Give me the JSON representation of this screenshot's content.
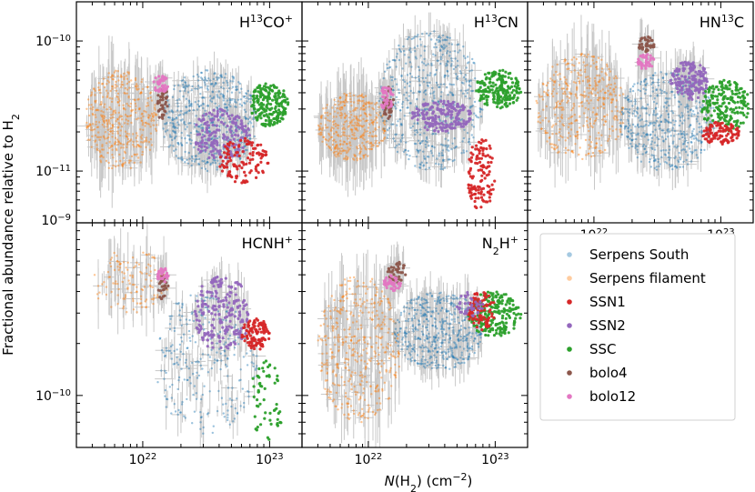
{
  "chart_data": {
    "type": "scatter",
    "xlabel": "N(H2) (cm−2)",
    "xlabel_parts": {
      "italic": "N",
      "rest": "(H",
      "sub": "2",
      "rest2": ") (cm",
      "sup": "−2",
      "close": ")"
    },
    "ylabel": "Fractional abundance relative to H2",
    "ylabel_parts": {
      "main": "Fractional abundance relative to H",
      "sub": "2"
    },
    "x_scale": "log",
    "y_scale": "log",
    "xlim": [
      3e+21,
      1.8e+23
    ],
    "x_ticks": [
      {
        "value": 1e+22,
        "base": "10",
        "exp": "22"
      },
      {
        "value": 1e+23,
        "base": "10",
        "exp": "23"
      }
    ],
    "y_ticks_top": [
      {
        "value": 1e-10,
        "base": "10",
        "exp": "−10"
      },
      {
        "value": 1e-11,
        "base": "10",
        "exp": "−11"
      }
    ],
    "y_ticks_bottom": [
      {
        "value": 1e-09,
        "base": "10",
        "exp": "−9"
      },
      {
        "value": 1e-10,
        "base": "10",
        "exp": "−10"
      }
    ],
    "ylim_top": [
      4e-12,
      2e-10
    ],
    "ylim_bottom": [
      5e-11,
      1e-09
    ],
    "series": [
      {
        "name": "Serpens South",
        "color": "#1f77b4"
      },
      {
        "name": "Serpens filament",
        "color": "#ff7f0e"
      },
      {
        "name": "SSN1",
        "color": "#d62728"
      },
      {
        "name": "SSN2",
        "color": "#9467bd"
      },
      {
        "name": "SSC",
        "color": "#2ca02c"
      },
      {
        "name": "bolo4",
        "color": "#8c564b"
      },
      {
        "name": "bolo12",
        "color": "#e377c2"
      }
    ],
    "panels": [
      {
        "id": "h13cop",
        "title_base": "H",
        "title_sup": "13",
        "title_rest": "CO",
        "title_sup2": "+",
        "title_sub": "",
        "clusters": [
          {
            "s": 1,
            "n": 420,
            "xr": [
              3.5e+21,
              1.3e+22
            ],
            "yr": [
              1e-11,
              6e-11
            ]
          },
          {
            "s": 0,
            "n": 520,
            "xr": [
              1.4e+22,
              8e+22
            ],
            "yr": [
              1e-11,
              6e-11
            ]
          },
          {
            "s": 4,
            "n": 200,
            "xr": [
              7e+22,
              1.4e+23
            ],
            "yr": [
              2.2e-11,
              4.8e-11
            ]
          },
          {
            "s": 3,
            "n": 180,
            "xr": [
              2.5e+22,
              7e+22
            ],
            "yr": [
              1.2e-11,
              3e-11
            ]
          },
          {
            "s": 2,
            "n": 120,
            "xr": [
              4e+22,
              1e+23
            ],
            "yr": [
              8e-12,
              1.8e-11
            ]
          },
          {
            "s": 5,
            "n": 40,
            "xr": [
              1.3e+22,
              1.6e+22
            ],
            "yr": [
              2.4e-11,
              4.5e-11
            ]
          },
          {
            "s": 6,
            "n": 40,
            "xr": [
              1.2e+22,
              1.6e+22
            ],
            "yr": [
              4e-11,
              5.5e-11
            ]
          }
        ]
      },
      {
        "id": "h13cn",
        "title_base": "H",
        "title_sup": "13",
        "title_rest": "CN",
        "title_sup2": "",
        "title_sub": "",
        "clusters": [
          {
            "s": 1,
            "n": 380,
            "xr": [
              4e+21,
              1.4e+22
            ],
            "yr": [
              1.2e-11,
              4e-11
            ]
          },
          {
            "s": 0,
            "n": 520,
            "xr": [
              1.2e+22,
              8e+22
            ],
            "yr": [
              1e-11,
              1.2e-10
            ]
          },
          {
            "s": 4,
            "n": 200,
            "xr": [
              7e+22,
              1.6e+23
            ],
            "yr": [
              3e-11,
              6e-11
            ]
          },
          {
            "s": 3,
            "n": 180,
            "xr": [
              2.2e+22,
              6.5e+22
            ],
            "yr": [
              2e-11,
              3.5e-11
            ]
          },
          {
            "s": 2,
            "n": 120,
            "xr": [
              6e+22,
              1e+23
            ],
            "yr": [
              5e-12,
              1.8e-11
            ]
          },
          {
            "s": 5,
            "n": 40,
            "xr": [
              1.3e+22,
              1.6e+22
            ],
            "yr": [
              2.5e-11,
              4.5e-11
            ]
          },
          {
            "s": 6,
            "n": 40,
            "xr": [
              1.2e+22,
              1.6e+22
            ],
            "yr": [
              3e-11,
              4.5e-11
            ]
          }
        ]
      },
      {
        "id": "hn13c",
        "title_base": "HN",
        "title_sup": "13",
        "title_rest": "C",
        "title_sup2": "",
        "title_sub": "",
        "clusters": [
          {
            "s": 1,
            "n": 400,
            "xr": [
              3.5e+21,
              1.8e+22
            ],
            "yr": [
              1.2e-11,
              8e-11
            ]
          },
          {
            "s": 0,
            "n": 480,
            "xr": [
              1.6e+22,
              9e+22
            ],
            "yr": [
              1e-11,
              6e-11
            ]
          },
          {
            "s": 4,
            "n": 200,
            "xr": [
              7e+22,
              1.7e+23
            ],
            "yr": [
              2e-11,
              5e-11
            ]
          },
          {
            "s": 3,
            "n": 160,
            "xr": [
              4e+22,
              8e+22
            ],
            "yr": [
              3.5e-11,
              7e-11
            ]
          },
          {
            "s": 2,
            "n": 110,
            "xr": [
              7e+22,
              1.4e+23
            ],
            "yr": [
              1.6e-11,
              2.4e-11
            ]
          },
          {
            "s": 5,
            "n": 40,
            "xr": [
              2.2e+22,
              3e+22
            ],
            "yr": [
              8e-11,
              1.1e-10
            ]
          },
          {
            "s": 6,
            "n": 40,
            "xr": [
              2.2e+22,
              3e+22
            ],
            "yr": [
              6e-11,
              8e-11
            ]
          }
        ]
      },
      {
        "id": "hcnhp",
        "title_base": "HCNH",
        "title_sup": "",
        "title_rest": "",
        "title_sup2": "+",
        "title_sub": "",
        "clusters": [
          {
            "s": 1,
            "n": 120,
            "xr": [
              4e+21,
              1.6e+22
            ],
            "yr": [
              3e-10,
              7e-10
            ]
          },
          {
            "s": 0,
            "n": 260,
            "xr": [
              1.2e+22,
              8e+22
            ],
            "yr": [
              6e-11,
              4e-10
            ]
          },
          {
            "s": 3,
            "n": 200,
            "xr": [
              2.5e+22,
              7e+22
            ],
            "yr": [
              1.8e-10,
              5e-10
            ]
          },
          {
            "s": 2,
            "n": 110,
            "xr": [
              6e+22,
              1e+23
            ],
            "yr": [
              1.8e-10,
              2.8e-10
            ]
          },
          {
            "s": 4,
            "n": 60,
            "xr": [
              7e+22,
              1.3e+23
            ],
            "yr": [
              5.5e-11,
              1.6e-10
            ]
          },
          {
            "s": 5,
            "n": 30,
            "xr": [
              1.3e+22,
              1.6e+22
            ],
            "yr": [
              3.5e-10,
              5e-10
            ]
          },
          {
            "s": 6,
            "n": 30,
            "xr": [
              1.3e+22,
              1.6e+22
            ],
            "yr": [
              4.5e-10,
              5.5e-10
            ]
          }
        ]
      },
      {
        "id": "n2hp",
        "title_base": "N",
        "title_sup": "",
        "title_rest": "H",
        "title_sup2": "+",
        "title_sub": "2",
        "clusters": [
          {
            "s": 1,
            "n": 420,
            "xr": [
              4e+21,
              1.8e+22
            ],
            "yr": [
              7e-11,
              5e-10
            ]
          },
          {
            "s": 0,
            "n": 480,
            "xr": [
              1.6e+22,
              8e+22
            ],
            "yr": [
              1.4e-10,
              4e-10
            ]
          },
          {
            "s": 4,
            "n": 220,
            "xr": [
              6e+22,
              1.6e+23
            ],
            "yr": [
              2.2e-10,
              4e-10
            ]
          },
          {
            "s": 2,
            "n": 90,
            "xr": [
              6e+22,
              1e+23
            ],
            "yr": [
              2.4e-10,
              4e-10
            ]
          },
          {
            "s": 3,
            "n": 40,
            "xr": [
              5e+22,
              8e+22
            ],
            "yr": [
              2.8e-10,
              4e-10
            ]
          },
          {
            "s": 5,
            "n": 40,
            "xr": [
              1.4e+22,
              2e+22
            ],
            "yr": [
              4.5e-10,
              6e-10
            ]
          },
          {
            "s": 6,
            "n": 40,
            "xr": [
              1.3e+22,
              1.8e+22
            ],
            "yr": [
              4e-10,
              5e-10
            ]
          }
        ]
      }
    ]
  }
}
